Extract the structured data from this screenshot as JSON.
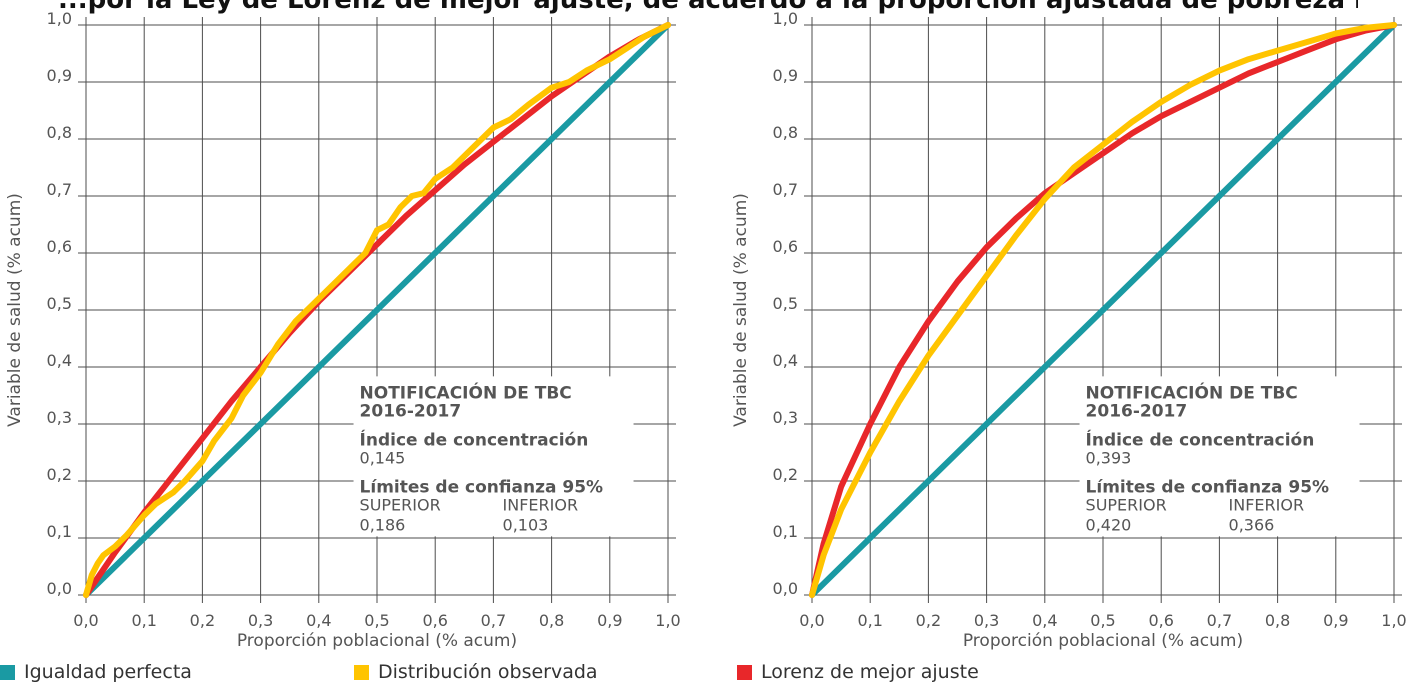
{
  "page": {
    "title": "...por la Ley de Lorenz de mejor ajuste, de acuerdo a la proporción ajustada de pobreza multidimensional según"
  },
  "colors": {
    "perfect": "#1a9aa3",
    "observed": "#ffc400",
    "lorenz": "#e8272a",
    "grid": "#4d4d4d"
  },
  "legend": [
    {
      "label": "Igualdad perfecta",
      "color": "#1a9aa3"
    },
    {
      "label": "Distribución observada",
      "color": "#ffc400"
    },
    {
      "label": "Lorenz de mejor ajuste",
      "color": "#e8272a"
    }
  ],
  "chart_data": [
    {
      "type": "line",
      "xlabel": "Proporción poblacional (% acum)",
      "ylabel": "Variable de salud (% acum)",
      "xlim": [
        0,
        1
      ],
      "ylim": [
        0,
        1
      ],
      "grid": true,
      "xticks": [
        "0,0",
        "0,1",
        "0,2",
        "0,3",
        "0,4",
        "0,5",
        "0,6",
        "0,7",
        "0,8",
        "0,9",
        "1,0"
      ],
      "yticks": [
        "0,0",
        "0,1",
        "0,2",
        "0,3",
        "0,4",
        "0,5",
        "0,6",
        "0,7",
        "0,8",
        "0,9",
        "1,0"
      ],
      "annotation": {
        "title_line1": "NOTIFICACIÓN DE TBC",
        "title_line2": "2016-2017",
        "index_label": "Índice de concentración",
        "index_value": "0,145",
        "ci_label": "Límites de confianza 95%",
        "upper_label": "SUPERIOR",
        "lower_label": "INFERIOR",
        "upper_value": "0,186",
        "lower_value": "0,103"
      },
      "series": [
        {
          "name": "Igualdad perfecta",
          "x": [
            0,
            1
          ],
          "y": [
            0,
            1
          ]
        },
        {
          "name": "Lorenz de mejor ajuste",
          "x": [
            0,
            0.05,
            0.1,
            0.15,
            0.2,
            0.25,
            0.3,
            0.35,
            0.4,
            0.45,
            0.5,
            0.55,
            0.6,
            0.65,
            0.7,
            0.75,
            0.8,
            0.85,
            0.9,
            0.95,
            1.0
          ],
          "y": [
            0,
            0.075,
            0.145,
            0.21,
            0.275,
            0.34,
            0.4,
            0.46,
            0.515,
            0.565,
            0.615,
            0.665,
            0.71,
            0.755,
            0.795,
            0.835,
            0.875,
            0.91,
            0.945,
            0.975,
            1.0
          ]
        },
        {
          "name": "Distribución observada",
          "x": [
            0,
            0.01,
            0.02,
            0.03,
            0.05,
            0.07,
            0.1,
            0.12,
            0.15,
            0.17,
            0.2,
            0.22,
            0.25,
            0.27,
            0.3,
            0.33,
            0.36,
            0.4,
            0.43,
            0.46,
            0.48,
            0.5,
            0.52,
            0.54,
            0.56,
            0.58,
            0.6,
            0.63,
            0.66,
            0.7,
            0.73,
            0.76,
            0.8,
            0.83,
            0.86,
            0.9,
            0.93,
            0.96,
            1.0
          ],
          "y": [
            0,
            0.035,
            0.055,
            0.07,
            0.085,
            0.105,
            0.14,
            0.16,
            0.18,
            0.2,
            0.235,
            0.27,
            0.31,
            0.35,
            0.39,
            0.44,
            0.48,
            0.52,
            0.55,
            0.58,
            0.6,
            0.64,
            0.65,
            0.68,
            0.7,
            0.705,
            0.73,
            0.75,
            0.78,
            0.82,
            0.835,
            0.86,
            0.89,
            0.9,
            0.92,
            0.94,
            0.96,
            0.98,
            1.0
          ]
        }
      ]
    },
    {
      "type": "line",
      "xlabel": "Proporción poblacional (% acum)",
      "ylabel": "Variable de salud (% acum)",
      "xlim": [
        0,
        1
      ],
      "ylim": [
        0,
        1
      ],
      "grid": true,
      "xticks": [
        "0,0",
        "0,1",
        "0,2",
        "0,3",
        "0,4",
        "0,5",
        "0,6",
        "0,7",
        "0,8",
        "0,9",
        "1,0"
      ],
      "yticks": [
        "0,0",
        "0,1",
        "0,2",
        "0,3",
        "0,4",
        "0,5",
        "0,6",
        "0,7",
        "0,8",
        "0,9",
        "1,0"
      ],
      "annotation": {
        "title_line1": "NOTIFICACIÓN DE TBC",
        "title_line2": "2016-2017",
        "index_label": "Índice de concentración",
        "index_value": "0,393",
        "ci_label": "Límites de confianza 95%",
        "upper_label": "SUPERIOR",
        "lower_label": "INFERIOR",
        "upper_value": "0,420",
        "lower_value": "0,366"
      },
      "series": [
        {
          "name": "Igualdad perfecta",
          "x": [
            0,
            1
          ],
          "y": [
            0,
            1
          ]
        },
        {
          "name": "Lorenz de mejor ajuste",
          "x": [
            0,
            0.02,
            0.05,
            0.1,
            0.15,
            0.2,
            0.25,
            0.3,
            0.35,
            0.4,
            0.45,
            0.5,
            0.55,
            0.6,
            0.65,
            0.7,
            0.75,
            0.8,
            0.85,
            0.9,
            0.95,
            1.0
          ],
          "y": [
            0,
            0.09,
            0.19,
            0.3,
            0.4,
            0.48,
            0.55,
            0.61,
            0.66,
            0.705,
            0.74,
            0.775,
            0.81,
            0.84,
            0.865,
            0.89,
            0.915,
            0.935,
            0.955,
            0.975,
            0.99,
            1.0
          ]
        },
        {
          "name": "Distribución observada",
          "x": [
            0,
            0.02,
            0.05,
            0.1,
            0.15,
            0.2,
            0.25,
            0.3,
            0.35,
            0.4,
            0.45,
            0.5,
            0.55,
            0.6,
            0.65,
            0.7,
            0.75,
            0.8,
            0.85,
            0.9,
            0.95,
            1.0
          ],
          "y": [
            0,
            0.07,
            0.15,
            0.25,
            0.34,
            0.42,
            0.49,
            0.56,
            0.63,
            0.695,
            0.75,
            0.79,
            0.83,
            0.865,
            0.895,
            0.92,
            0.94,
            0.955,
            0.97,
            0.985,
            0.995,
            1.0
          ]
        }
      ]
    }
  ]
}
